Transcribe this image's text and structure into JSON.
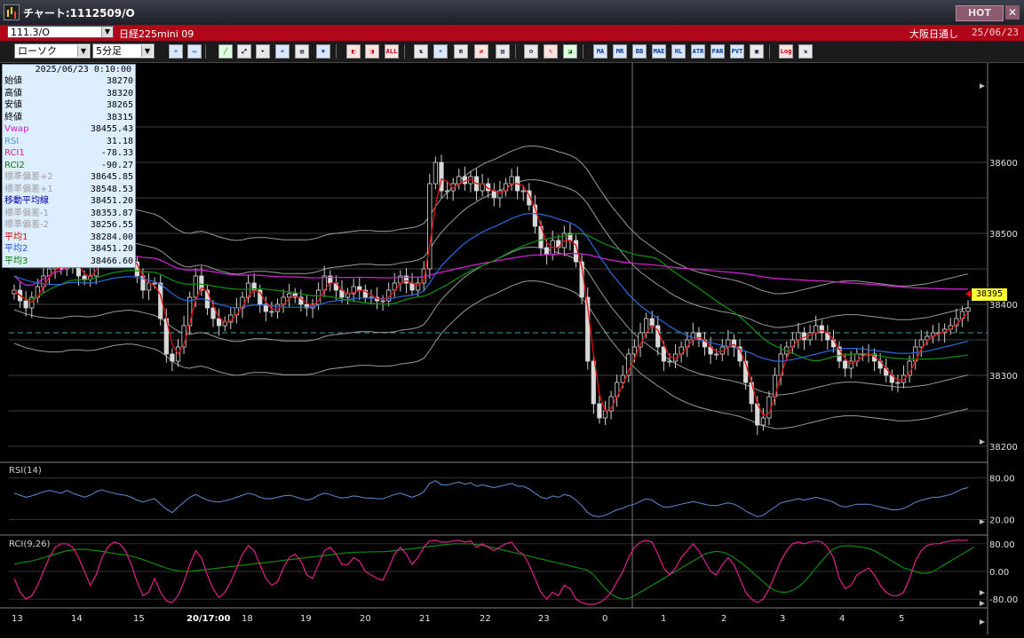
{
  "window": {
    "title": "チャート:1112509/O",
    "hot_label": "HOT",
    "close_glyph": "✕"
  },
  "symbolbar": {
    "code": "111.3/O",
    "name": "日経225mini 09",
    "market": "大阪日通し",
    "date": "25/06/23"
  },
  "toolbar": {
    "chart_type": "ローソク",
    "interval": "5分足",
    "indicator_buttons": [
      "MA",
      "BB",
      "MAE",
      "HL",
      "ATR",
      "PAR",
      "PVT"
    ],
    "log_button": "Log",
    "all_button": "ALL"
  },
  "info": {
    "datetime": "2025/06/23  0:10:00",
    "rows": [
      {
        "label": "始値",
        "value": "38270",
        "color": "#000000"
      },
      {
        "label": "高値",
        "value": "38320",
        "color": "#000000"
      },
      {
        "label": "安値",
        "value": "38265",
        "color": "#000000"
      },
      {
        "label": "終値",
        "value": "38315",
        "color": "#000000"
      },
      {
        "label": "Vwap",
        "value": "38455.43",
        "color": "#d020d0"
      },
      {
        "label": "RSI",
        "value": "31.18",
        "color": "#5b8fd8"
      },
      {
        "label": "RCI1",
        "value": "-78.33",
        "color": "#e0208a"
      },
      {
        "label": "RCI2",
        "value": "-90.27",
        "color": "#107010"
      },
      {
        "label": "標準偏差+2",
        "value": "38645.85",
        "color": "#a0a0a0"
      },
      {
        "label": "標準偏差+1",
        "value": "38548.53",
        "color": "#a0a0a0"
      },
      {
        "label": "移動平均線",
        "value": "38451.20",
        "color": "#0000a0"
      },
      {
        "label": "標準偏差-1",
        "value": "38353.87",
        "color": "#a0a0a0"
      },
      {
        "label": "標準偏差-2",
        "value": "38256.55",
        "color": "#a0a0a0"
      },
      {
        "label": "平均1",
        "value": "38284.00",
        "color": "#e00000"
      },
      {
        "label": "平均2",
        "value": "38451.20",
        "color": "#2050e0"
      },
      {
        "label": "平均3",
        "value": "38466.60",
        "color": "#008000"
      }
    ]
  },
  "last_price": "38395",
  "panels": {
    "rsi_label": "RSI(14)",
    "rci_label": "RCI(9,26)"
  },
  "chart_data": {
    "type": "line",
    "price_axis": {
      "ticks": [
        "38600",
        "38500",
        "38400",
        "38300",
        "38200"
      ],
      "range": [
        38180,
        38740
      ]
    },
    "rsi_axis": {
      "ticks": [
        "80.00",
        "20.00"
      ]
    },
    "rci_axis": {
      "ticks": [
        "80.00",
        "0.00",
        "-80.00"
      ]
    },
    "time_labels": [
      "13",
      "14",
      "15",
      "20/17:00",
      "18",
      "19",
      "20",
      "21",
      "22",
      "23",
      "0",
      "1",
      "2",
      "3",
      "4",
      "5"
    ],
    "close": [
      38420,
      38405,
      38395,
      38410,
      38425,
      38440,
      38450,
      38455,
      38450,
      38470,
      38455,
      38440,
      38435,
      38440,
      38470,
      38480,
      38485,
      38480,
      38470,
      38470,
      38460,
      38440,
      38420,
      38430,
      38430,
      38380,
      38330,
      38320,
      38340,
      38370,
      38410,
      38440,
      38420,
      38395,
      38380,
      38370,
      38375,
      38385,
      38395,
      38410,
      38430,
      38420,
      38400,
      38390,
      38390,
      38400,
      38410,
      38415,
      38410,
      38400,
      38395,
      38400,
      38420,
      38440,
      38430,
      38420,
      38410,
      38415,
      38425,
      38420,
      38410,
      38410,
      38405,
      38405,
      38420,
      38430,
      38440,
      38430,
      38420,
      38430,
      38450,
      38570,
      38600,
      38560,
      38560,
      38570,
      38580,
      38570,
      38580,
      38560,
      38570,
      38560,
      38550,
      38560,
      38570,
      38580,
      38560,
      38560,
      38540,
      38510,
      38480,
      38470,
      38490,
      38480,
      38500,
      38490,
      38460,
      38410,
      38320,
      38260,
      38240,
      38250,
      38270,
      38290,
      38300,
      38330,
      38340,
      38360,
      38380,
      38370,
      38340,
      38320,
      38320,
      38330,
      38340,
      38350,
      38360,
      38350,
      38340,
      38330,
      38330,
      38340,
      38350,
      38340,
      38320,
      38290,
      38260,
      38230,
      38240,
      38270,
      38300,
      38330,
      38340,
      38350,
      38360,
      38350,
      38360,
      38370,
      38360,
      38350,
      38340,
      38320,
      38310,
      38320,
      38330,
      38330,
      38330,
      38320,
      38310,
      38300,
      38290,
      38290,
      38300,
      38320,
      38340,
      38350,
      38355,
      38360,
      38360,
      38365,
      38370,
      38380,
      38390,
      38395
    ],
    "ma_mid": [
      38440,
      38437,
      38434,
      38432,
      38430,
      38429,
      38428,
      38428,
      38428,
      38430,
      38431,
      38431,
      38430,
      38430,
      38431,
      38433,
      38435,
      38437,
      38438,
      38439,
      38439,
      38438,
      38436,
      38434,
      38432,
      38428,
      38422,
      38415,
      38410,
      38406,
      38405,
      38407,
      38408,
      38406,
      38403,
      38400,
      38398,
      38396,
      38395,
      38396,
      38398,
      38399,
      38399,
      38399,
      38398,
      38397,
      38396,
      38396,
      38396,
      38396,
      38396,
      38397,
      38399,
      38402,
      38404,
      38405,
      38406,
      38407,
      38408,
      38409,
      38409,
      38409,
      38408,
      38408,
      38408,
      38409,
      38411,
      38412,
      38413,
      38415,
      38419,
      38430,
      38443,
      38454,
      38463,
      38471,
      38479,
      38486,
      38492,
      38497,
      38502,
      38506,
      38509,
      38513,
      38517,
      38521,
      38524,
      38527,
      38528,
      38528,
      38527,
      38525,
      38523,
      38520,
      38518,
      38515,
      38511,
      38504,
      38494,
      38481,
      38468,
      38456,
      38444,
      38434,
      38424,
      38414,
      38406,
      38398,
      38392,
      38386,
      38380,
      38375,
      38369,
      38364,
      38360,
      38356,
      38353,
      38350,
      38348,
      38346,
      38344,
      38342,
      38341,
      38339,
      38337,
      38334,
      38331,
      38327,
      38324,
      38322,
      38320,
      38320,
      38321,
      38322,
      38324,
      38326,
      38328,
      38330,
      38332,
      38334,
      38336,
      38337,
      38338,
      38338,
      38338,
      38337,
      38336,
      38335,
      38334,
      38333,
      38332,
      38331,
      38331,
      38331,
      38332,
      38333,
      38334,
      38336,
      38338,
      38340,
      38342,
      38344,
      38346,
      38348
    ],
    "bb_width": 95,
    "rsi": [
      58,
      55,
      52,
      54,
      57,
      60,
      62,
      60,
      58,
      62,
      58,
      55,
      52,
      55,
      60,
      63,
      60,
      58,
      56,
      55,
      52,
      48,
      45,
      48,
      50,
      42,
      35,
      30,
      38,
      45,
      52,
      56,
      52,
      48,
      46,
      45,
      47,
      49,
      52,
      55,
      58,
      56,
      52,
      50,
      50,
      52,
      54,
      55,
      53,
      50,
      48,
      50,
      55,
      58,
      56,
      53,
      51,
      52,
      54,
      53,
      51,
      51,
      50,
      50,
      53,
      56,
      58,
      55,
      52,
      55,
      60,
      72,
      76,
      70,
      70,
      72,
      74,
      71,
      73,
      68,
      70,
      68,
      66,
      68,
      70,
      72,
      68,
      68,
      64,
      58,
      52,
      50,
      54,
      52,
      56,
      54,
      48,
      40,
      30,
      25,
      24,
      26,
      30,
      34,
      36,
      40,
      42,
      46,
      50,
      48,
      42,
      38,
      38,
      40,
      42,
      44,
      46,
      44,
      42,
      40,
      40,
      42,
      44,
      42,
      38,
      32,
      28,
      24,
      26,
      32,
      38,
      44,
      46,
      48,
      50,
      48,
      50,
      52,
      50,
      48,
      45,
      40,
      38,
      40,
      42,
      42,
      42,
      40,
      38,
      36,
      34,
      34,
      36,
      40,
      45,
      48,
      50,
      52,
      52,
      54,
      56,
      60,
      64,
      66
    ],
    "rci1": [
      -20,
      -60,
      -80,
      -70,
      -40,
      0,
      40,
      70,
      80,
      80,
      70,
      40,
      0,
      -40,
      -10,
      40,
      70,
      85,
      80,
      60,
      20,
      -30,
      -70,
      -60,
      -20,
      -60,
      -85,
      -90,
      -70,
      -30,
      20,
      60,
      40,
      -10,
      -50,
      -75,
      -60,
      -30,
      10,
      50,
      75,
      60,
      20,
      -20,
      -40,
      -30,
      10,
      40,
      50,
      30,
      -10,
      -20,
      20,
      60,
      70,
      50,
      20,
      20,
      40,
      30,
      0,
      -10,
      -20,
      -25,
      10,
      50,
      70,
      50,
      20,
      40,
      70,
      88,
      90,
      85,
      85,
      88,
      90,
      85,
      88,
      70,
      80,
      70,
      60,
      70,
      80,
      85,
      60,
      50,
      20,
      -20,
      -60,
      -80,
      -60,
      -70,
      -40,
      -50,
      -80,
      -90,
      -95,
      -95,
      -90,
      -80,
      -60,
      -30,
      0,
      40,
      70,
      85,
      90,
      85,
      50,
      10,
      -10,
      10,
      40,
      60,
      80,
      60,
      30,
      0,
      -10,
      20,
      40,
      20,
      -20,
      -60,
      -80,
      -90,
      -80,
      -50,
      -10,
      30,
      60,
      80,
      85,
      80,
      85,
      88,
      85,
      70,
      40,
      -20,
      -50,
      -40,
      -10,
      0,
      10,
      -10,
      -40,
      -60,
      -70,
      -70,
      -60,
      -20,
      30,
      60,
      75,
      80,
      80,
      85,
      88,
      90,
      90,
      90
    ],
    "rci2": [
      20,
      25,
      28,
      30,
      35,
      40,
      45,
      50,
      55,
      60,
      62,
      64,
      64,
      62,
      60,
      58,
      55,
      52,
      50,
      48,
      44,
      40,
      34,
      28,
      22,
      16,
      10,
      5,
      2,
      0,
      0,
      2,
      4,
      6,
      8,
      10,
      12,
      14,
      16,
      18,
      20,
      22,
      24,
      26,
      28,
      30,
      32,
      34,
      36,
      38,
      40,
      42,
      44,
      46,
      48,
      50,
      52,
      54,
      55,
      56,
      56,
      57,
      57,
      57,
      58,
      60,
      62,
      64,
      66,
      68,
      70,
      72,
      74,
      76,
      78,
      80,
      80,
      80,
      80,
      78,
      76,
      72,
      68,
      64,
      60,
      56,
      52,
      48,
      44,
      40,
      36,
      32,
      28,
      24,
      20,
      16,
      12,
      8,
      4,
      -10,
      -30,
      -50,
      -65,
      -75,
      -80,
      -78,
      -70,
      -60,
      -50,
      -40,
      -30,
      -20,
      -10,
      0,
      10,
      20,
      30,
      40,
      50,
      55,
      58,
      56,
      50,
      40,
      28,
      15,
      0,
      -15,
      -30,
      -45,
      -55,
      -60,
      -60,
      -55,
      -45,
      -30,
      -10,
      10,
      30,
      50,
      65,
      72,
      74,
      74,
      72,
      70,
      66,
      60,
      50,
      40,
      30,
      20,
      10,
      5,
      0,
      -5,
      -5,
      0,
      10,
      20,
      30,
      40,
      50,
      60,
      70
    ]
  }
}
